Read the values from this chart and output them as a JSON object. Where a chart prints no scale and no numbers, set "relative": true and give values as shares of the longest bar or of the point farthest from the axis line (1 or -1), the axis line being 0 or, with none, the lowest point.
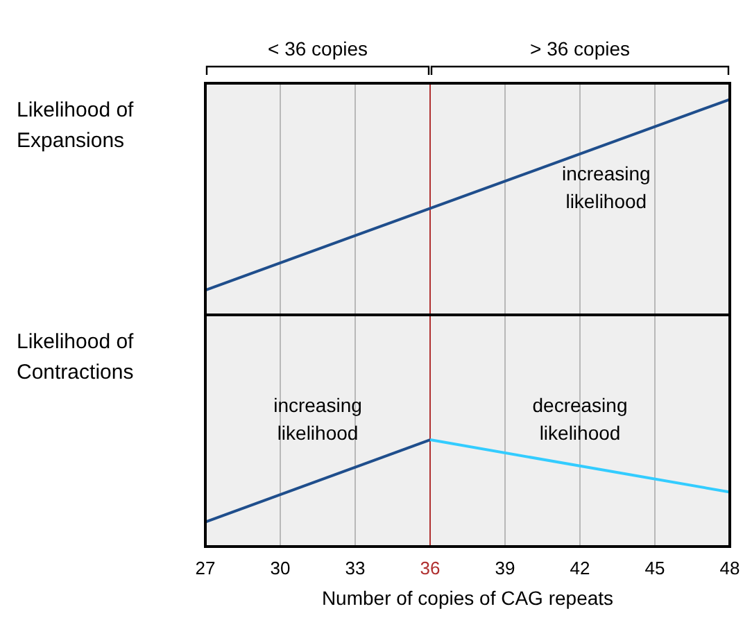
{
  "chart_data": [
    {
      "type": "line",
      "ylabel": "Likelihood of Expansions",
      "relative": true,
      "xlim": [
        27,
        48
      ],
      "xticks": [
        27,
        30,
        33,
        36,
        39,
        42,
        45,
        48
      ],
      "tick_labels": false,
      "grid": "x",
      "marker": "none",
      "line_style": "solid",
      "series": [
        {
          "color": "#1f4e8c",
          "x": [
            27,
            48
          ],
          "values": [
            0.115,
            1
          ]
        }
      ],
      "ref_lines": [
        {
          "axis": "x",
          "value": 36,
          "color": "#b03030"
        }
      ],
      "annotations": [
        "< 36 copies",
        "> 36 copies",
        "increasing likelihood"
      ]
    },
    {
      "type": "line",
      "ylabel": "Likelihood of Contractions",
      "xlabel": "Number of copies of CAG repeats",
      "relative": true,
      "xlim": [
        27,
        48
      ],
      "xticks": [
        27,
        30,
        33,
        36,
        39,
        42,
        45,
        48
      ],
      "tick_labels": "x",
      "grid": "x",
      "marker": "none",
      "line_style": "solid",
      "series": [
        {
          "color": "#1f4e8c",
          "x": [
            27,
            36
          ],
          "values": [
            0.23,
            1
          ]
        },
        {
          "color": "#33ccff",
          "x": [
            36,
            48
          ],
          "values": [
            1,
            0.51
          ]
        }
      ],
      "ref_lines": [
        {
          "axis": "x",
          "value": 36,
          "color": "#b03030"
        }
      ],
      "annotations": [
        "increasing likelihood",
        "decreasing likelihood"
      ]
    }
  ]
}
